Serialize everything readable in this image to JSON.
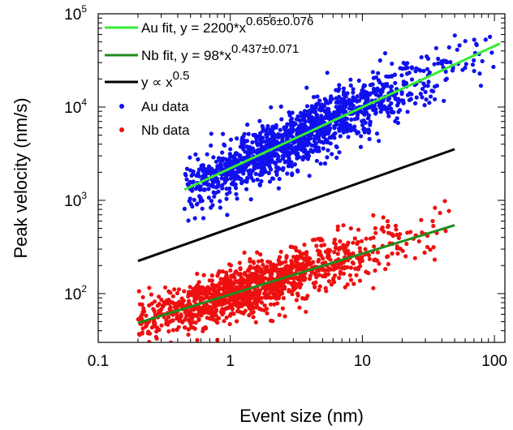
{
  "chart_data": {
    "type": "scatter",
    "xscale": "log",
    "yscale": "log",
    "xlim": [
      0.1,
      120
    ],
    "ylim": [
      30,
      100000
    ],
    "xlabel": "Event size (nm)",
    "ylabel": "Peak velocity (nm/s)",
    "x_tick_labels": [
      {
        "value": 0.1,
        "label": "0.1"
      },
      {
        "value": 1,
        "label": "1"
      },
      {
        "value": 10,
        "label": "10"
      },
      {
        "value": 100,
        "label": "100"
      }
    ],
    "y_tick_labels": [
      {
        "value": 100,
        "base": "10",
        "exp": "2"
      },
      {
        "value": 1000,
        "base": "10",
        "exp": "3"
      },
      {
        "value": 10000,
        "base": "10",
        "exp": "4"
      },
      {
        "value": 100000,
        "base": "10",
        "exp": "5"
      }
    ],
    "legend": {
      "placement": "top-left",
      "entries": [
        {
          "key": "au_fit",
          "kind": "line",
          "color": "#33ee33",
          "text": "Au fit, y = 2200*x",
          "sup": "0.656±0.076"
        },
        {
          "key": "nb_fit",
          "kind": "line",
          "color": "#1e8c1e",
          "text": "Nb fit, y = 98*x",
          "sup": "0.437±0.071"
        },
        {
          "key": "ref",
          "kind": "line",
          "color": "#000000",
          "text": "y ∝ x",
          "sup": "0.5"
        },
        {
          "key": "au",
          "kind": "marker",
          "color": "#1010ee",
          "text": "Au data",
          "sup": ""
        },
        {
          "key": "nb",
          "kind": "marker",
          "color": "#ee1010",
          "text": "Nb data",
          "sup": ""
        }
      ]
    },
    "series": [
      {
        "key": "au",
        "type": "scatter",
        "color": "#1010ee",
        "x_range": [
          0.45,
          110
        ],
        "prefactor": 2200,
        "exponent": 0.656,
        "scatter_factor": 1.9,
        "n_points": 1400
      },
      {
        "key": "nb",
        "type": "scatter",
        "color": "#ee1010",
        "x_range": [
          0.2,
          50
        ],
        "prefactor": 98,
        "exponent": 0.437,
        "scatter_factor": 1.8,
        "n_points": 1300
      },
      {
        "key": "au_fit",
        "type": "line",
        "color": "#33ee33",
        "x": [
          0.45,
          110
        ],
        "prefactor": 2200,
        "exponent": 0.656
      },
      {
        "key": "nb_fit",
        "type": "line",
        "color": "#1e8c1e",
        "x": [
          0.2,
          50
        ],
        "prefactor": 98,
        "exponent": 0.437
      },
      {
        "key": "ref",
        "type": "line",
        "color": "#000000",
        "x": [
          0.2,
          50
        ],
        "prefactor": 500,
        "exponent": 0.5
      }
    ]
  }
}
